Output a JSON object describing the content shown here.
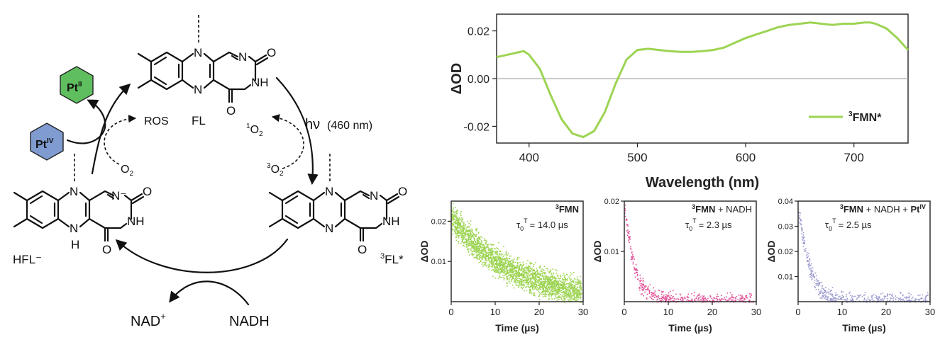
{
  "colors": {
    "green": "#9dd453",
    "pink": "#e0559a",
    "lavender": "#9c9cd0",
    "pt_ii_fill": "#5fbf5f",
    "pt_iv_fill": "#7f9bd0",
    "zero_line": "#aaaaaa"
  },
  "cycle": {
    "fl_label": "FL",
    "tfl_sup": "3",
    "tfl_label": "FL*",
    "hfl_label": "HFL⁻",
    "hv_label": "hν",
    "hv_nm": "(460 nm)",
    "singlet_o2_sup": "1",
    "triplet_o2_sup": "3",
    "o2_base": "O",
    "o2_sub": "2",
    "ros": "ROS",
    "nad_plus": "NAD",
    "nad_plus_sup": "+",
    "nadh": "NADH",
    "pt_ii": "Pt",
    "pt_ii_sup": "II",
    "pt_iv": "Pt",
    "pt_iv_sup": "IV",
    "atom_N": "N",
    "atom_O": "O",
    "atom_NH": "NH",
    "atom_H": "H",
    "atom_Nminus": "N⁻"
  },
  "spectrum": {
    "chart_data": {
      "type": "line",
      "title": "",
      "xlabel": "Wavelength (nm)",
      "ylabel": "ΔOD",
      "xlim": [
        370,
        750
      ],
      "ylim": [
        -0.027,
        0.027
      ],
      "xticks": [
        "400",
        "500",
        "600",
        "700"
      ],
      "yticks": [
        "0.02",
        "0.00",
        "-0.02"
      ],
      "legend_sup": "3",
      "legend": "FMN*",
      "legend_position": "bottom-right",
      "series": [
        {
          "name": "3FMN*",
          "x": [
            370,
            380,
            390,
            395,
            400,
            410,
            420,
            430,
            440,
            450,
            460,
            470,
            480,
            490,
            500,
            510,
            520,
            530,
            540,
            550,
            560,
            570,
            580,
            590,
            600,
            610,
            620,
            630,
            640,
            650,
            660,
            670,
            680,
            690,
            700,
            710,
            715,
            720,
            730,
            740,
            750
          ],
          "y": [
            0.009,
            0.01,
            0.011,
            0.0115,
            0.01,
            0.004,
            -0.007,
            -0.017,
            -0.023,
            -0.0245,
            -0.022,
            -0.014,
            -0.002,
            0.008,
            0.012,
            0.0125,
            0.012,
            0.0115,
            0.0112,
            0.0112,
            0.0115,
            0.012,
            0.013,
            0.015,
            0.017,
            0.0185,
            0.02,
            0.0215,
            0.0225,
            0.023,
            0.0235,
            0.023,
            0.0225,
            0.023,
            0.023,
            0.0235,
            0.0235,
            0.023,
            0.021,
            0.017,
            0.012
          ]
        }
      ]
    }
  },
  "decays": [
    {
      "chart_data": {
        "type": "scatter",
        "title_sup": "3",
        "title_bold": "FMN",
        "title_rest": "",
        "title_pt": "",
        "title_pt_sup": "",
        "tau_sym": "τ",
        "tau_sub": "0",
        "tau_sup": "T",
        "tau_value": "= 14.0 µs",
        "xlabel": "Time (µs)",
        "ylabel": "ΔOD",
        "xlim": [
          0,
          30
        ],
        "ylim": [
          0,
          0.025
        ],
        "xticks": [
          "0",
          "10",
          "20",
          "30"
        ],
        "yticks": [
          "0.01",
          "0.02"
        ],
        "tau_us": 14.0,
        "amplitude": 0.021,
        "noise": 0.003,
        "n_points": 2600,
        "color_key": "green"
      }
    },
    {
      "chart_data": {
        "type": "scatter",
        "title_sup": "3",
        "title_bold": "FMN",
        "title_rest": " + NADH",
        "title_pt": "",
        "title_pt_sup": "",
        "tau_sym": "τ",
        "tau_sub": "0",
        "tau_sup": "T",
        "tau_value": "= 2.3 µs",
        "xlabel": "Time (µs)",
        "ylabel": "ΔOD",
        "xlim": [
          0,
          30
        ],
        "ylim": [
          0,
          0.02
        ],
        "xticks": [
          "0",
          "10",
          "20",
          "30"
        ],
        "yticks": [
          "0.01",
          "0.02"
        ],
        "tau_us": 2.3,
        "amplitude": 0.019,
        "noise": 0.0015,
        "n_points": 700,
        "color_key": "pink"
      }
    },
    {
      "chart_data": {
        "type": "scatter",
        "title_sup": "3",
        "title_bold": "FMN",
        "title_rest": " + NADH + ",
        "title_pt": "Pt",
        "title_pt_sup": "IV",
        "tau_sym": "τ",
        "tau_sub": "0",
        "tau_sup": "T",
        "tau_value": "= 2.5 µs",
        "xlabel": "Time (µs)",
        "ylabel": "ΔOD",
        "xlim": [
          0,
          30
        ],
        "ylim": [
          0,
          0.04
        ],
        "xticks": [
          "0",
          "10",
          "20",
          "30"
        ],
        "yticks": [
          "0.01",
          "0.02",
          "0.03",
          "0.04"
        ],
        "tau_us": 2.5,
        "amplitude": 0.038,
        "noise": 0.003,
        "n_points": 700,
        "color_key": "lavender"
      }
    }
  ]
}
